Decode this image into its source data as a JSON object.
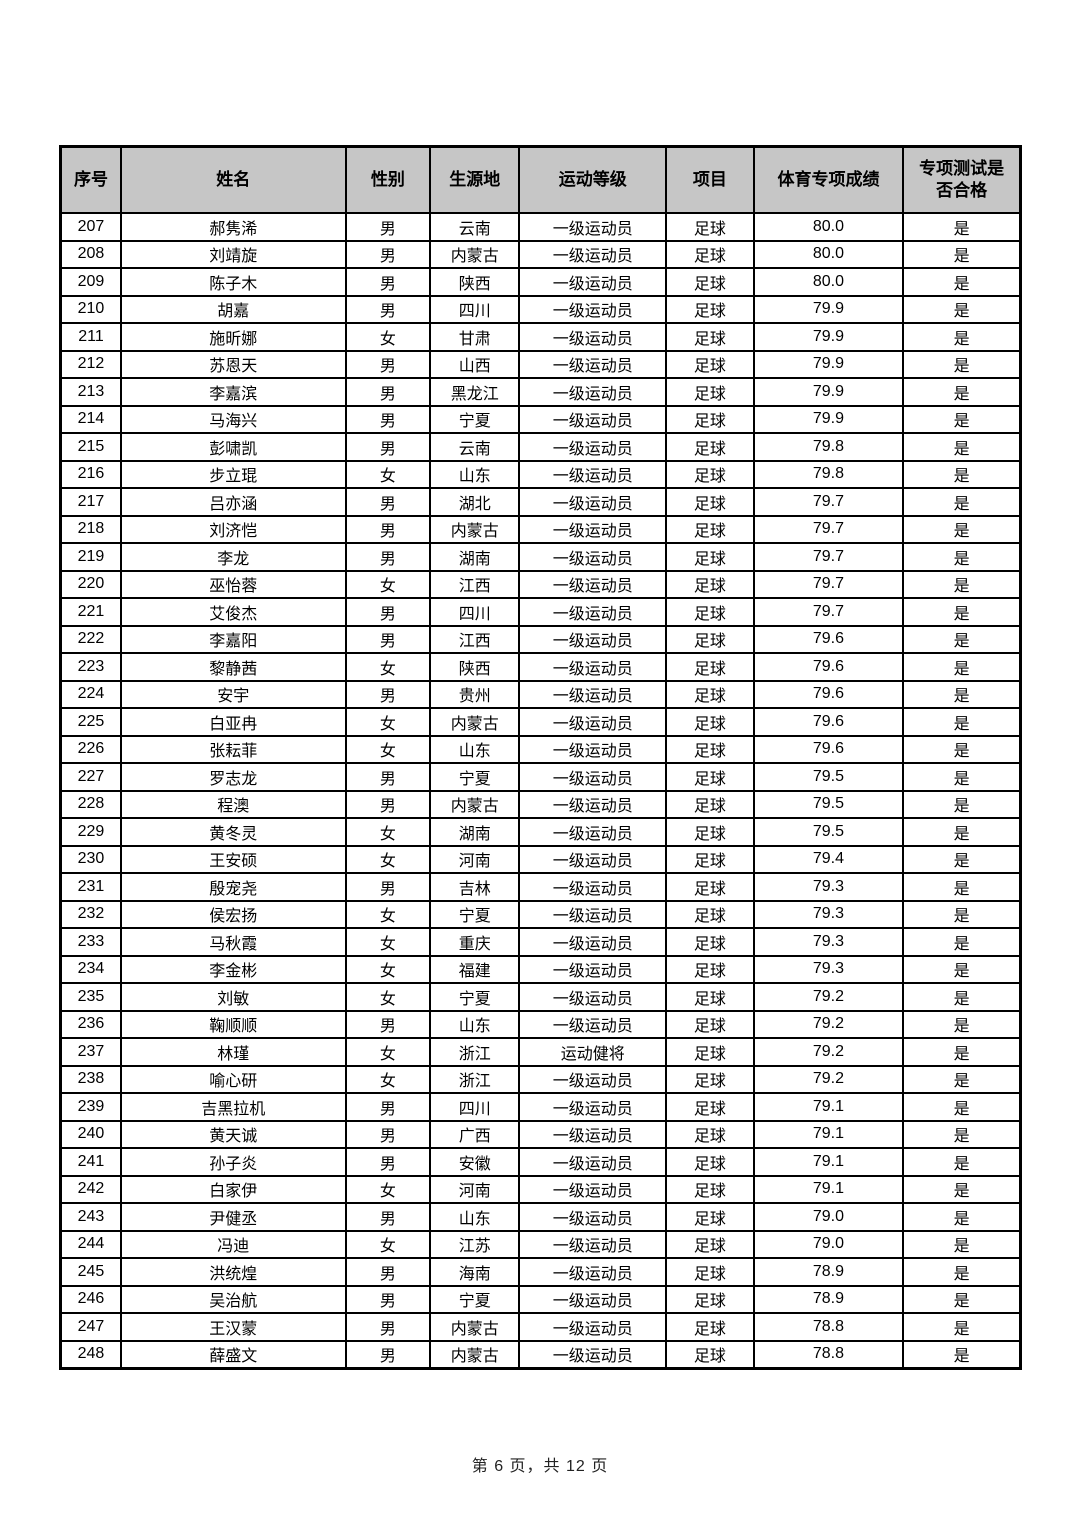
{
  "page": {
    "footer_text": "第 6 页，共 12 页"
  },
  "colors": {
    "header_bg": "#c6c6c6",
    "border": "#000000",
    "page_bg": "#ffffff"
  },
  "table": {
    "headers": [
      "序号",
      "姓名",
      "性别",
      "生源地",
      "运动等级",
      "项目",
      "体育专项成绩",
      "专项测试是\n否合格"
    ],
    "rows": [
      [
        "207",
        "郝隽浠",
        "男",
        "云南",
        "一级运动员",
        "足球",
        "80.0",
        "是"
      ],
      [
        "208",
        "刘靖旋",
        "男",
        "内蒙古",
        "一级运动员",
        "足球",
        "80.0",
        "是"
      ],
      [
        "209",
        "陈子木",
        "男",
        "陕西",
        "一级运动员",
        "足球",
        "80.0",
        "是"
      ],
      [
        "210",
        "胡嘉",
        "男",
        "四川",
        "一级运动员",
        "足球",
        "79.9",
        "是"
      ],
      [
        "211",
        "施昕娜",
        "女",
        "甘肃",
        "一级运动员",
        "足球",
        "79.9",
        "是"
      ],
      [
        "212",
        "苏恩天",
        "男",
        "山西",
        "一级运动员",
        "足球",
        "79.9",
        "是"
      ],
      [
        "213",
        "李嘉滨",
        "男",
        "黑龙江",
        "一级运动员",
        "足球",
        "79.9",
        "是"
      ],
      [
        "214",
        "马海兴",
        "男",
        "宁夏",
        "一级运动员",
        "足球",
        "79.9",
        "是"
      ],
      [
        "215",
        "彭啸凯",
        "男",
        "云南",
        "一级运动员",
        "足球",
        "79.8",
        "是"
      ],
      [
        "216",
        "步立琨",
        "女",
        "山东",
        "一级运动员",
        "足球",
        "79.8",
        "是"
      ],
      [
        "217",
        "吕亦涵",
        "男",
        "湖北",
        "一级运动员",
        "足球",
        "79.7",
        "是"
      ],
      [
        "218",
        "刘济恺",
        "男",
        "内蒙古",
        "一级运动员",
        "足球",
        "79.7",
        "是"
      ],
      [
        "219",
        "李龙",
        "男",
        "湖南",
        "一级运动员",
        "足球",
        "79.7",
        "是"
      ],
      [
        "220",
        "巫怡蓉",
        "女",
        "江西",
        "一级运动员",
        "足球",
        "79.7",
        "是"
      ],
      [
        "221",
        "艾俊杰",
        "男",
        "四川",
        "一级运动员",
        "足球",
        "79.7",
        "是"
      ],
      [
        "222",
        "李嘉阳",
        "男",
        "江西",
        "一级运动员",
        "足球",
        "79.6",
        "是"
      ],
      [
        "223",
        "黎静茜",
        "女",
        "陕西",
        "一级运动员",
        "足球",
        "79.6",
        "是"
      ],
      [
        "224",
        "安宇",
        "男",
        "贵州",
        "一级运动员",
        "足球",
        "79.6",
        "是"
      ],
      [
        "225",
        "白亚冉",
        "女",
        "内蒙古",
        "一级运动员",
        "足球",
        "79.6",
        "是"
      ],
      [
        "226",
        "张耘菲",
        "女",
        "山东",
        "一级运动员",
        "足球",
        "79.6",
        "是"
      ],
      [
        "227",
        "罗志龙",
        "男",
        "宁夏",
        "一级运动员",
        "足球",
        "79.5",
        "是"
      ],
      [
        "228",
        "程澳",
        "男",
        "内蒙古",
        "一级运动员",
        "足球",
        "79.5",
        "是"
      ],
      [
        "229",
        "黄冬灵",
        "女",
        "湖南",
        "一级运动员",
        "足球",
        "79.5",
        "是"
      ],
      [
        "230",
        "王安硕",
        "女",
        "河南",
        "一级运动员",
        "足球",
        "79.4",
        "是"
      ],
      [
        "231",
        "殷宠尧",
        "男",
        "吉林",
        "一级运动员",
        "足球",
        "79.3",
        "是"
      ],
      [
        "232",
        "侯宏扬",
        "女",
        "宁夏",
        "一级运动员",
        "足球",
        "79.3",
        "是"
      ],
      [
        "233",
        "马秋霞",
        "女",
        "重庆",
        "一级运动员",
        "足球",
        "79.3",
        "是"
      ],
      [
        "234",
        "李金彬",
        "女",
        "福建",
        "一级运动员",
        "足球",
        "79.3",
        "是"
      ],
      [
        "235",
        "刘敏",
        "女",
        "宁夏",
        "一级运动员",
        "足球",
        "79.2",
        "是"
      ],
      [
        "236",
        "鞠顺顺",
        "男",
        "山东",
        "一级运动员",
        "足球",
        "79.2",
        "是"
      ],
      [
        "237",
        "林瑾",
        "女",
        "浙江",
        "运动健将",
        "足球",
        "79.2",
        "是"
      ],
      [
        "238",
        "喻心研",
        "女",
        "浙江",
        "一级运动员",
        "足球",
        "79.2",
        "是"
      ],
      [
        "239",
        "吉黑拉机",
        "男",
        "四川",
        "一级运动员",
        "足球",
        "79.1",
        "是"
      ],
      [
        "240",
        "黄天诚",
        "男",
        "广西",
        "一级运动员",
        "足球",
        "79.1",
        "是"
      ],
      [
        "241",
        "孙子炎",
        "男",
        "安徽",
        "一级运动员",
        "足球",
        "79.1",
        "是"
      ],
      [
        "242",
        "白家伊",
        "女",
        "河南",
        "一级运动员",
        "足球",
        "79.1",
        "是"
      ],
      [
        "243",
        "尹健丞",
        "男",
        "山东",
        "一级运动员",
        "足球",
        "79.0",
        "是"
      ],
      [
        "244",
        "冯迪",
        "女",
        "江苏",
        "一级运动员",
        "足球",
        "79.0",
        "是"
      ],
      [
        "245",
        "洪统煌",
        "男",
        "海南",
        "一级运动员",
        "足球",
        "78.9",
        "是"
      ],
      [
        "246",
        "吴治航",
        "男",
        "宁夏",
        "一级运动员",
        "足球",
        "78.9",
        "是"
      ],
      [
        "247",
        "王汉蒙",
        "男",
        "内蒙古",
        "一级运动员",
        "足球",
        "78.8",
        "是"
      ],
      [
        "248",
        "薛盛文",
        "男",
        "内蒙古",
        "一级运动员",
        "足球",
        "78.8",
        "是"
      ]
    ]
  }
}
